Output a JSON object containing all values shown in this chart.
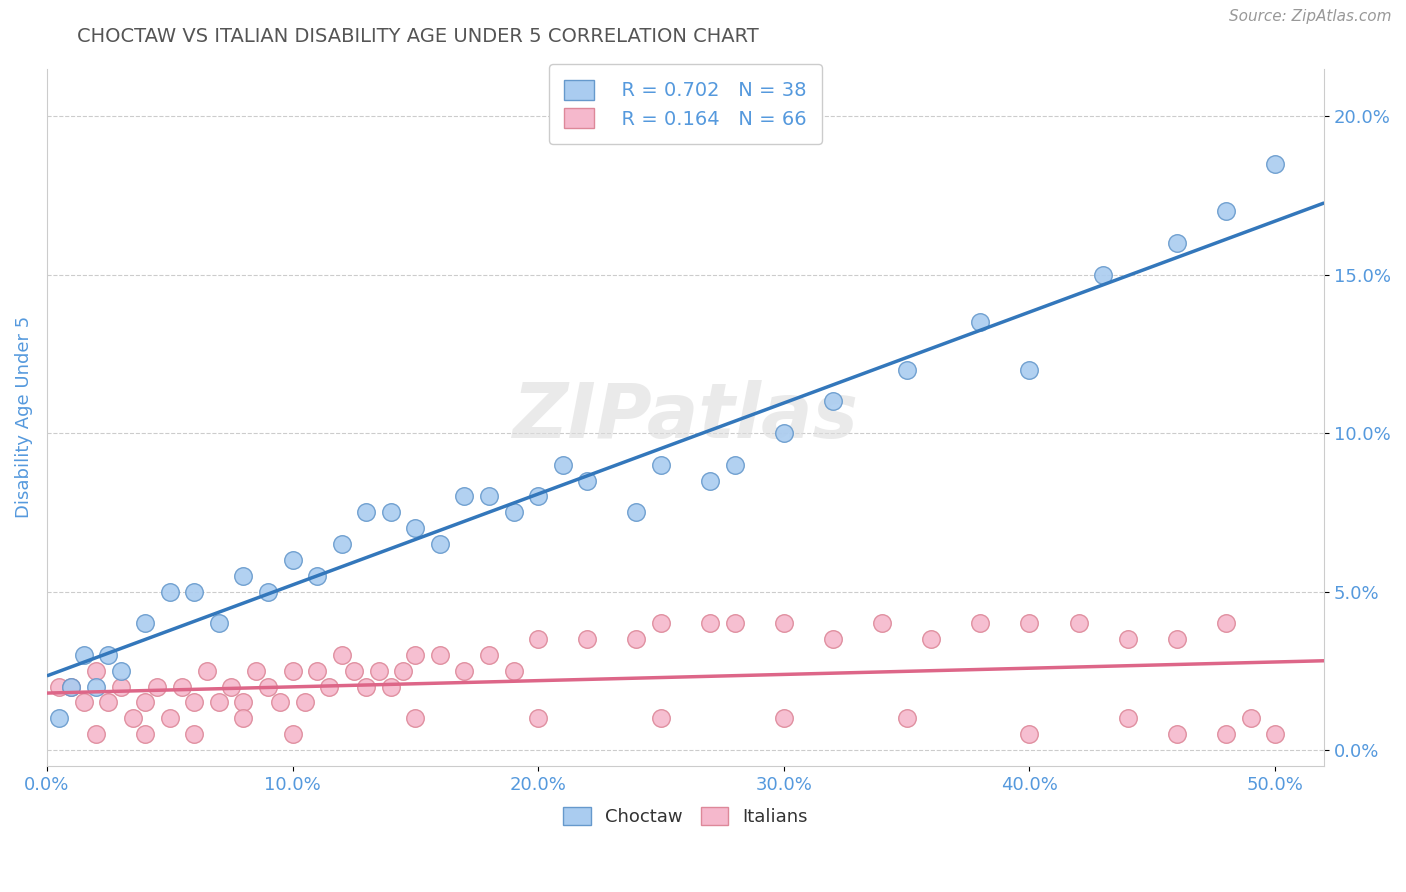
{
  "title": "CHOCTAW VS ITALIAN DISABILITY AGE UNDER 5 CORRELATION CHART",
  "source": "Source: ZipAtlas.com",
  "ylabel": "Disability Age Under 5",
  "xlim": [
    0.0,
    0.52
  ],
  "ylim": [
    -0.005,
    0.215
  ],
  "xticks": [
    0.0,
    0.1,
    0.2,
    0.3,
    0.4,
    0.5
  ],
  "xticklabels": [
    "0.0%",
    "10.0%",
    "20.0%",
    "30.0%",
    "40.0%",
    "50.0%"
  ],
  "yticks": [
    0.0,
    0.05,
    0.1,
    0.15,
    0.2
  ],
  "yticklabels": [
    "0.0%",
    "5.0%",
    "10.0%",
    "15.0%",
    "20.0%"
  ],
  "legend_r1": "R = 0.702",
  "legend_n1": "N = 38",
  "legend_r2": "R = 0.164",
  "legend_n2": "N = 66",
  "choctaw_color": "#aaccf0",
  "choctaw_edge": "#6699cc",
  "italian_color": "#f5b8cc",
  "italian_edge": "#dd8899",
  "choctaw_line_color": "#3377bb",
  "italian_line_color": "#dd6688",
  "watermark": "ZIPatlas",
  "background_color": "#ffffff",
  "grid_color": "#cccccc",
  "title_color": "#555555",
  "tick_color": "#5599dd",
  "ylabel_color": "#5599dd",
  "choctaw_x": [
    0.005,
    0.01,
    0.015,
    0.02,
    0.025,
    0.03,
    0.04,
    0.05,
    0.06,
    0.07,
    0.08,
    0.09,
    0.1,
    0.11,
    0.12,
    0.13,
    0.14,
    0.15,
    0.16,
    0.17,
    0.18,
    0.19,
    0.2,
    0.21,
    0.22,
    0.24,
    0.25,
    0.27,
    0.28,
    0.3,
    0.32,
    0.35,
    0.38,
    0.4,
    0.43,
    0.46,
    0.48,
    0.5
  ],
  "choctaw_y": [
    0.01,
    0.02,
    0.03,
    0.02,
    0.03,
    0.025,
    0.04,
    0.05,
    0.05,
    0.04,
    0.055,
    0.05,
    0.06,
    0.055,
    0.065,
    0.075,
    0.075,
    0.07,
    0.065,
    0.08,
    0.08,
    0.075,
    0.08,
    0.09,
    0.085,
    0.075,
    0.09,
    0.085,
    0.09,
    0.1,
    0.11,
    0.12,
    0.135,
    0.12,
    0.15,
    0.16,
    0.17,
    0.185
  ],
  "italian_x": [
    0.005,
    0.01,
    0.015,
    0.02,
    0.025,
    0.03,
    0.035,
    0.04,
    0.045,
    0.05,
    0.055,
    0.06,
    0.065,
    0.07,
    0.075,
    0.08,
    0.085,
    0.09,
    0.095,
    0.1,
    0.105,
    0.11,
    0.115,
    0.12,
    0.125,
    0.13,
    0.135,
    0.14,
    0.145,
    0.15,
    0.16,
    0.17,
    0.18,
    0.19,
    0.2,
    0.22,
    0.24,
    0.25,
    0.27,
    0.28,
    0.3,
    0.32,
    0.34,
    0.36,
    0.38,
    0.4,
    0.42,
    0.44,
    0.46,
    0.48,
    0.02,
    0.04,
    0.06,
    0.08,
    0.1,
    0.15,
    0.2,
    0.25,
    0.3,
    0.35,
    0.4,
    0.44,
    0.46,
    0.48,
    0.49,
    0.5
  ],
  "italian_y": [
    0.02,
    0.02,
    0.015,
    0.025,
    0.015,
    0.02,
    0.01,
    0.015,
    0.02,
    0.01,
    0.02,
    0.015,
    0.025,
    0.015,
    0.02,
    0.015,
    0.025,
    0.02,
    0.015,
    0.025,
    0.015,
    0.025,
    0.02,
    0.03,
    0.025,
    0.02,
    0.025,
    0.02,
    0.025,
    0.03,
    0.03,
    0.025,
    0.03,
    0.025,
    0.035,
    0.035,
    0.035,
    0.04,
    0.04,
    0.04,
    0.04,
    0.035,
    0.04,
    0.035,
    0.04,
    0.04,
    0.04,
    0.035,
    0.035,
    0.04,
    0.005,
    0.005,
    0.005,
    0.01,
    0.005,
    0.01,
    0.01,
    0.01,
    0.01,
    0.01,
    0.005,
    0.01,
    0.005,
    0.005,
    0.01,
    0.005
  ]
}
